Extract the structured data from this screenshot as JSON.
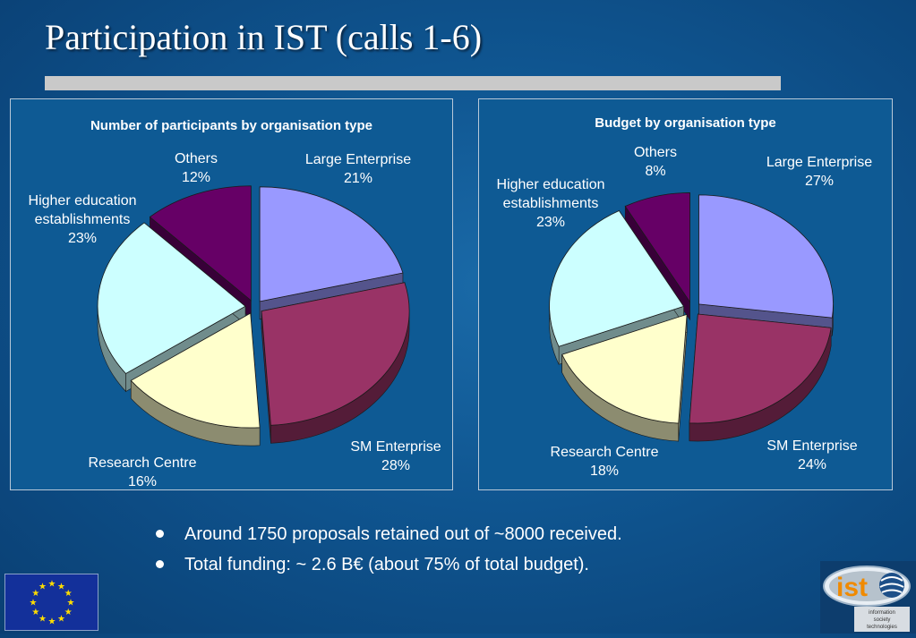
{
  "slide": {
    "title": "Participation in IST (calls 1-6)",
    "bullets": [
      "Around 1750 proposals retained out of ~8000 received.",
      "Total funding: ~ 2.6 B€ (about 75% of total budget)."
    ]
  },
  "logos": {
    "ist_text": "ist",
    "ist_subtext": [
      "information",
      "society",
      "technologies"
    ]
  },
  "colors": {
    "Large Enterprise": "#9999ff",
    "SM Enterprise": "#993366",
    "Research Centre": "#ffffcc",
    "Higher education establishments": "#ccffff",
    "Others": "#660066"
  },
  "chart_data": [
    {
      "type": "pie",
      "title": "Number of participants by organisation type",
      "style": "3d-exploded",
      "categories": [
        "Large Enterprise",
        "SM Enterprise",
        "Research Centre",
        "Higher education establishments",
        "Others"
      ],
      "values": [
        21,
        28,
        16,
        23,
        12
      ],
      "labels": [
        "21%",
        "28%",
        "16%",
        "23%",
        "12%"
      ]
    },
    {
      "type": "pie",
      "title": "Budget by organisation type",
      "style": "3d-exploded",
      "categories": [
        "Large Enterprise",
        "SM Enterprise",
        "Research Centre",
        "Higher education establishments",
        "Others"
      ],
      "values": [
        27,
        24,
        18,
        23,
        8
      ],
      "labels": [
        "27%",
        "24%",
        "18%",
        "23%",
        "8%"
      ]
    }
  ]
}
